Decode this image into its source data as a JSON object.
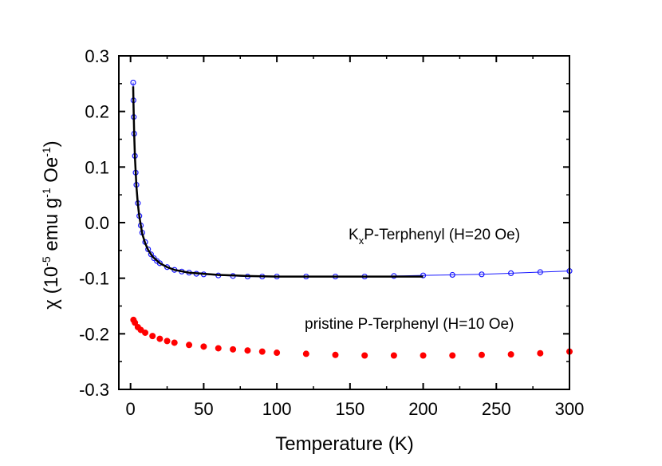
{
  "chart_data": {
    "type": "scatter",
    "xlabel": "Temperature (K)",
    "ylabel": {
      "parts": [
        "χ (10",
        "-5",
        " emu g",
        "-1",
        " Oe",
        "-1",
        ")"
      ]
    },
    "xlim": [
      -8,
      300
    ],
    "ylim": [
      -0.3,
      0.3
    ],
    "x_ticks": [
      "0",
      "50",
      "100",
      "150",
      "200",
      "250",
      "300"
    ],
    "y_ticks": [
      "0.3",
      "0.2",
      "0.1",
      "0.0",
      "-0.1",
      "-0.2",
      "-0.3"
    ],
    "grid": false,
    "series": [
      {
        "label_parts": [
          "K",
          "x",
          "P-Terphenyl (H=20 Oe)"
        ],
        "color": "#1a1aff",
        "marker": "open-circle",
        "x": [
          1.8,
          2,
          2.2,
          2.5,
          3,
          3.5,
          4,
          5,
          6,
          7,
          8,
          10,
          12,
          14,
          16,
          18,
          20,
          25,
          30,
          35,
          40,
          45,
          50,
          60,
          70,
          80,
          90,
          100,
          120,
          140,
          160,
          180,
          200,
          220,
          240,
          260,
          280,
          300
        ],
        "y": [
          0.252,
          0.22,
          0.19,
          0.16,
          0.12,
          0.09,
          0.068,
          0.035,
          0.012,
          -0.005,
          -0.018,
          -0.035,
          -0.048,
          -0.057,
          -0.064,
          -0.069,
          -0.073,
          -0.08,
          -0.085,
          -0.088,
          -0.09,
          -0.092,
          -0.093,
          -0.095,
          -0.096,
          -0.097,
          -0.097,
          -0.097,
          -0.097,
          -0.097,
          -0.097,
          -0.096,
          -0.095,
          -0.094,
          -0.093,
          -0.091,
          -0.089,
          -0.087
        ]
      },
      {
        "label_parts": [
          "pristine P-Terphenyl (H=10 Oe)"
        ],
        "color": "#ff0000",
        "marker": "filled-circle",
        "x": [
          2,
          3,
          5,
          7,
          10,
          15,
          20,
          25,
          30,
          40,
          50,
          60,
          70,
          80,
          90,
          100,
          120,
          140,
          160,
          180,
          200,
          220,
          240,
          260,
          280,
          300
        ],
        "y": [
          -0.175,
          -0.18,
          -0.188,
          -0.193,
          -0.198,
          -0.204,
          -0.209,
          -0.213,
          -0.216,
          -0.22,
          -0.223,
          -0.226,
          -0.228,
          -0.23,
          -0.232,
          -0.234,
          -0.236,
          -0.238,
          -0.239,
          -0.239,
          -0.239,
          -0.239,
          -0.238,
          -0.237,
          -0.235,
          -0.232
        ]
      }
    ],
    "fit_line": {
      "color": "#000000",
      "x": [
        1.8,
        2,
        2.5,
        3,
        4,
        5,
        6,
        8,
        10,
        12,
        15,
        20,
        25,
        30,
        40,
        50,
        60,
        70,
        80,
        100,
        120,
        140,
        160,
        180,
        200
      ],
      "y": [
        0.245,
        0.215,
        0.158,
        0.118,
        0.066,
        0.033,
        0.011,
        -0.02,
        -0.037,
        -0.049,
        -0.061,
        -0.073,
        -0.08,
        -0.085,
        -0.09,
        -0.092,
        -0.094,
        -0.095,
        -0.096,
        -0.097,
        -0.097,
        -0.097,
        -0.097,
        -0.097,
        -0.097
      ]
    }
  }
}
